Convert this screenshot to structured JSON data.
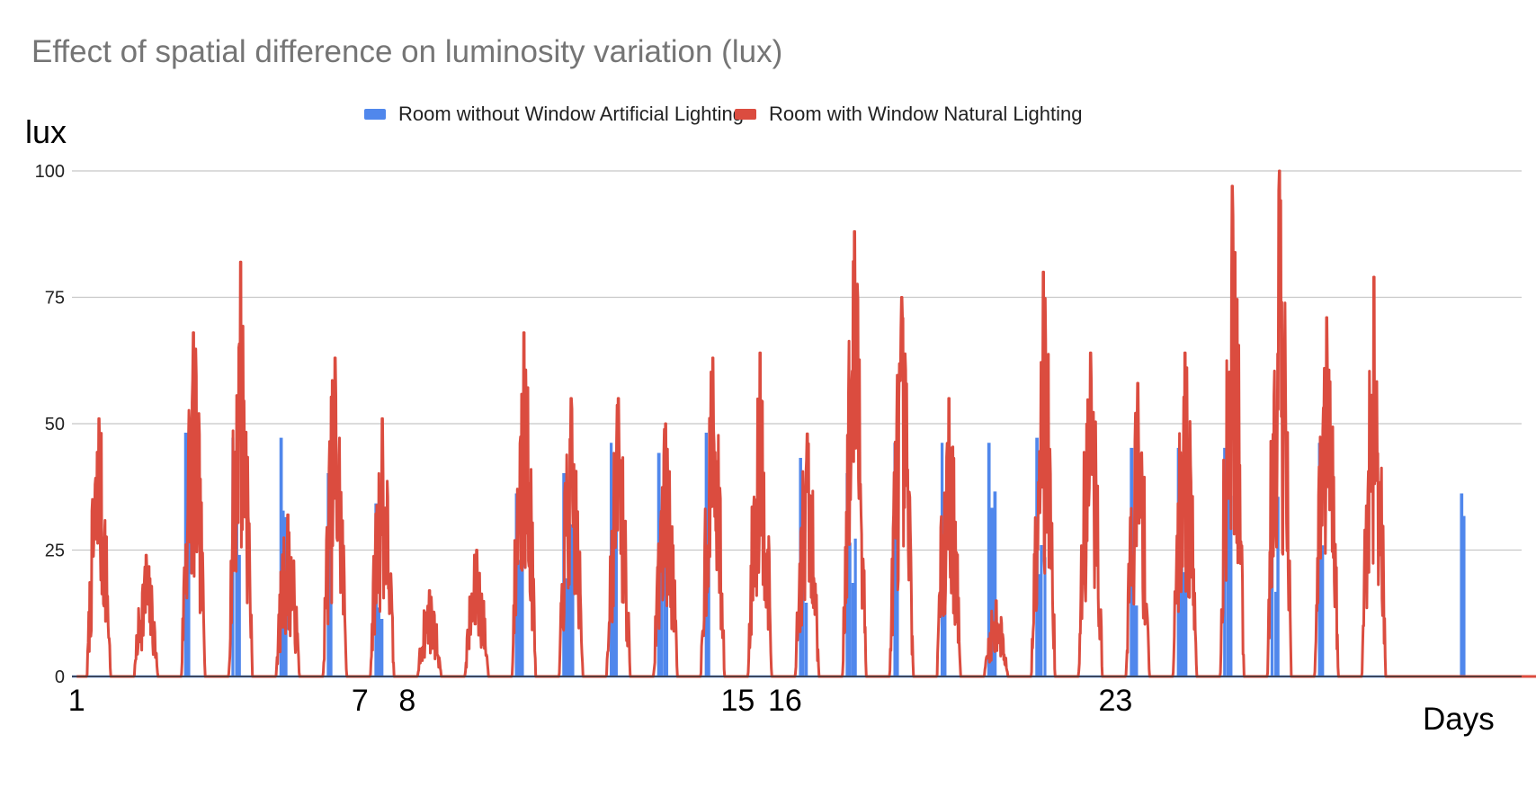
{
  "chart_data": {
    "type": "line",
    "title": "Effect of spatial difference on luminosity variation (lux)",
    "ylabel": "lux",
    "xlabel": "Days",
    "ylim": [
      0,
      100
    ],
    "yticks": [
      "0",
      "25",
      "50",
      "75",
      "100"
    ],
    "xlim": [
      0.9,
      31.6
    ],
    "xticks": [
      {
        "day": 1,
        "label": "1"
      },
      {
        "day": 7,
        "label": "7"
      },
      {
        "day": 8,
        "label": "8"
      },
      {
        "day": 15,
        "label": "15"
      },
      {
        "day": 16,
        "label": "16"
      },
      {
        "day": 23,
        "label": "23"
      }
    ],
    "grid": true,
    "legend_position": "top",
    "colors": {
      "artificial": "#5087ec",
      "natural": "#db4c3f",
      "grid": "#c8c8c8",
      "axis": "#333333"
    },
    "series": [
      {
        "name": "Room without Window Artificial Lighting",
        "color": "#5087ec",
        "day_peaks": [
          0,
          0,
          48,
          47,
          47,
          40,
          34,
          0,
          0,
          36,
          40,
          46,
          44,
          48,
          0,
          43,
          40,
          46,
          46,
          46,
          47,
          0,
          45,
          45,
          45,
          46,
          46,
          0,
          0,
          36,
          0
        ]
      },
      {
        "name": "Room with Window Natural Lighting",
        "color": "#db4c3f",
        "day_peaks": [
          51,
          24,
          68,
          82,
          32,
          63,
          51,
          17,
          25,
          68,
          55,
          55,
          50,
          63,
          64,
          48,
          88,
          75,
          55,
          15,
          80,
          64,
          58,
          64,
          97,
          100,
          71,
          79,
          0,
          0,
          0
        ]
      }
    ]
  }
}
